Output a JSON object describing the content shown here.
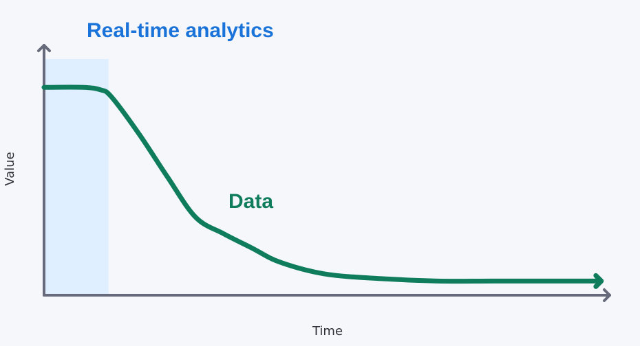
{
  "chart_data": {
    "type": "line",
    "title": "Real-time analytics",
    "xlabel": "Time",
    "ylabel": "Value",
    "grid": false,
    "ticks": false,
    "xlim": [
      0,
      100
    ],
    "ylim": [
      0,
      100
    ],
    "highlight_region": {
      "x_range": [
        0,
        11.5
      ]
    },
    "series": [
      {
        "name": "Data",
        "x": [
          0,
          7,
          10,
          12,
          17,
          22,
          27,
          32,
          37,
          42,
          50,
          60,
          70,
          80,
          90,
          99
        ],
        "y": [
          88,
          88,
          87,
          84,
          68,
          50,
          33,
          26,
          20,
          14,
          9,
          7,
          6,
          6,
          6,
          6
        ]
      }
    ]
  },
  "colors": {
    "title": "#1a73d9",
    "series": "#0f7d5c",
    "axis": "#666a7a",
    "highlight": "#e0efff",
    "background": "#f6f7fa"
  }
}
